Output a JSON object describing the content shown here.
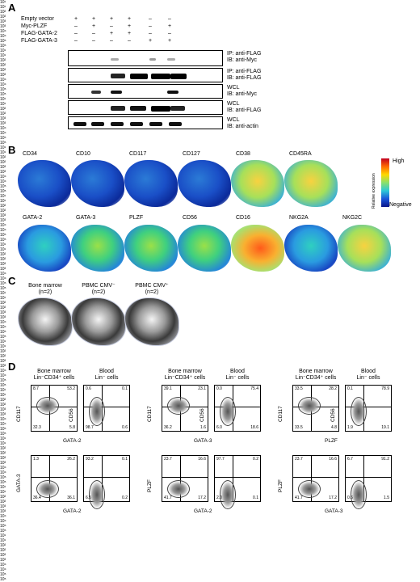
{
  "panels": {
    "a": "A",
    "b": "B",
    "c": "C",
    "d": "D"
  },
  "panel_a": {
    "rows": [
      {
        "label": "Empty vector",
        "signs": [
          "+",
          "+",
          "+",
          "+",
          "–",
          "–"
        ]
      },
      {
        "label": "Myc-PLZF",
        "signs": [
          "–",
          "+",
          "–",
          "+",
          "–",
          "+"
        ]
      },
      {
        "label": "FLAG-GATA-2",
        "signs": [
          "–",
          "–",
          "+",
          "+",
          "–",
          "–"
        ]
      },
      {
        "label": "FLAG-GATA-3",
        "signs": [
          "–",
          "–",
          "–",
          "–",
          "+",
          "+"
        ]
      }
    ],
    "blots": [
      {
        "ip": "IP: anti-FLAG",
        "ib": "IB: anti-Myc"
      },
      {
        "ip": "IP: anti-FLAG",
        "ib": "IB: anti-FLAG"
      },
      {
        "ip": "WCL",
        "ib": "IB: anti-Myc"
      },
      {
        "ip": "WCL",
        "ib": "IB: anti-FLAG"
      },
      {
        "ip": "WCL",
        "ib": "IB: anti-actin"
      }
    ]
  },
  "panel_b": {
    "row1": [
      "CD34",
      "CD10",
      "CD117",
      "CD127",
      "CD38",
      "CD45RA"
    ],
    "row2": [
      "GATA-2",
      "GATA-3",
      "PLZF",
      "CD56",
      "CD16",
      "NKG2A",
      "NKG2C"
    ],
    "legend_high": "High",
    "legend_neg": "Negative",
    "legend_title": "Relative expression"
  },
  "panel_c": [
    {
      "title": "Bone marrow",
      "n": "(n=2)"
    },
    {
      "title": "PBMC CMV⁻",
      "n": "(n=2)"
    },
    {
      "title": "PBMC CMV⁺",
      "n": "(n=2)"
    }
  ],
  "panel_d": {
    "groups": [
      {
        "title1": "Bone marrow",
        "title2": "Lin⁻CD34⁺ cells"
      },
      {
        "title1": "Blood",
        "title2": "Lin⁻ cells"
      },
      {
        "title1": "Bone marrow",
        "title2": "Lin⁻CD34⁺ cells"
      },
      {
        "title1": "Blood",
        "title2": "Lin⁻ cells"
      },
      {
        "title1": "Bone marrow",
        "title2": "Lin⁻CD34⁺ cells"
      },
      {
        "title1": "Blood",
        "title2": "Lin⁻ cells"
      }
    ],
    "top_row": [
      {
        "y": "CD117",
        "x": "GATA-2",
        "q": [
          "8.7",
          "53.2",
          "32.3",
          "5.8"
        ]
      },
      {
        "y": "CD56",
        "x": "",
        "q": [
          "0.6",
          "0.1",
          "98.7",
          "0.6"
        ]
      },
      {
        "y": "CD117",
        "x": "GATA-3",
        "q": [
          "39.1",
          "23.1",
          "36.2",
          "1.6"
        ]
      },
      {
        "y": "CD56",
        "x": "",
        "q": [
          "0.0",
          "75.4",
          "6.0",
          "18.6"
        ]
      },
      {
        "y": "CD117",
        "x": "PLZF",
        "q": [
          "33.5",
          "28.2",
          "33.5",
          "4.8"
        ]
      },
      {
        "y": "CD56",
        "x": "",
        "q": [
          "0.1",
          "78.9",
          "1.9",
          "19.1"
        ]
      }
    ],
    "bottom_row": [
      {
        "y": "GATA-3",
        "x": "GATA-2",
        "q": [
          "1.3",
          "26.2",
          "36.4",
          "36.1"
        ]
      },
      {
        "y": "",
        "x": "",
        "q": [
          "93.2",
          "0.1",
          "6.5",
          "0.2"
        ]
      },
      {
        "y": "PLZF",
        "x": "GATA-2",
        "q": [
          "23.7",
          "16.6",
          "41.7",
          "17.2"
        ]
      },
      {
        "y": "",
        "x": "",
        "q": [
          "97.7",
          "0.2",
          "2.0",
          "0.1"
        ]
      },
      {
        "y": "PLZF",
        "x": "GATA-3",
        "q": [
          "23.7",
          "16.6",
          "41.7",
          "17.2"
        ]
      },
      {
        "y": "",
        "x": "",
        "q": [
          "6.7",
          "91.2",
          "0.6",
          "1.5"
        ]
      }
    ],
    "ticks": [
      "10¹",
      "10²",
      "10³",
      "10⁴",
      "10⁵"
    ]
  }
}
